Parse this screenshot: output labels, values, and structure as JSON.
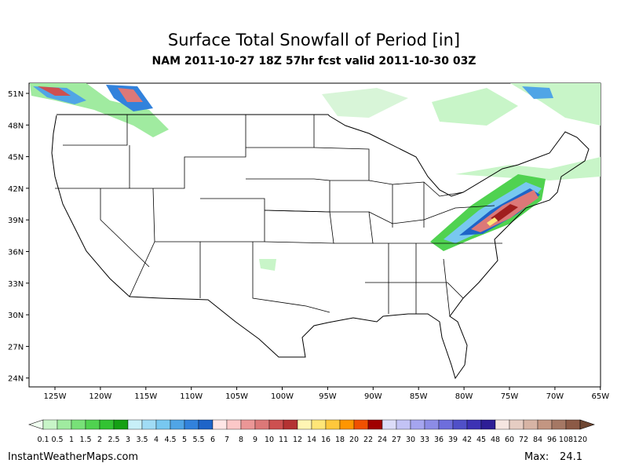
{
  "header": {
    "title": "Surface Total Snowfall of Period [in]",
    "subtitle": "NAM 2011-10-27 18Z 57hr fcst valid 2011-10-30 03Z"
  },
  "axes": {
    "lat_labels": [
      "51N",
      "48N",
      "45N",
      "42N",
      "39N",
      "36N",
      "33N",
      "30N",
      "27N",
      "24N"
    ],
    "lon_labels": [
      "125W",
      "120W",
      "115W",
      "110W",
      "105W",
      "100W",
      "95W",
      "90W",
      "85W",
      "80W",
      "75W",
      "70W",
      "65W"
    ]
  },
  "colorbar": {
    "labels": [
      "0.1",
      "0.5",
      "1",
      "1.5",
      "2",
      "2.5",
      "3",
      "3.5",
      "4",
      "4.5",
      "5",
      "5.5",
      "6",
      "7",
      "8",
      "9",
      "10",
      "11",
      "12",
      "14",
      "16",
      "18",
      "20",
      "22",
      "24",
      "27",
      "30",
      "33",
      "36",
      "39",
      "42",
      "45",
      "48",
      "60",
      "72",
      "84",
      "96",
      "108",
      "120"
    ],
    "under_color": "#f0fff0",
    "over_color": "#6e4632",
    "colors": [
      "#c8f5c8",
      "#a0eba0",
      "#78e178",
      "#50d250",
      "#32c332",
      "#14a014",
      "#c8f0f8",
      "#a0dcf5",
      "#78c8f0",
      "#50a5e6",
      "#3282dc",
      "#1e64c8",
      "#ffe6e6",
      "#fcc8c8",
      "#eb9696",
      "#dc7878",
      "#cd5050",
      "#b43232",
      "#fff5b4",
      "#ffe678",
      "#ffc83c",
      "#ff9600",
      "#f05000",
      "#a00000",
      "#dcdcf8",
      "#c3c3f5",
      "#a5a5ef",
      "#8c8ce6",
      "#6e6edc",
      "#5050c8",
      "#3c32b4",
      "#2d1e96",
      "#f5e6e1",
      "#e6cdc3",
      "#d7b4a5",
      "#c39682",
      "#a57864",
      "#8c5a46"
    ]
  },
  "footer": {
    "source": "InstantWeatherMaps.com",
    "max_label": "Max:",
    "max_value": 24.1
  }
}
